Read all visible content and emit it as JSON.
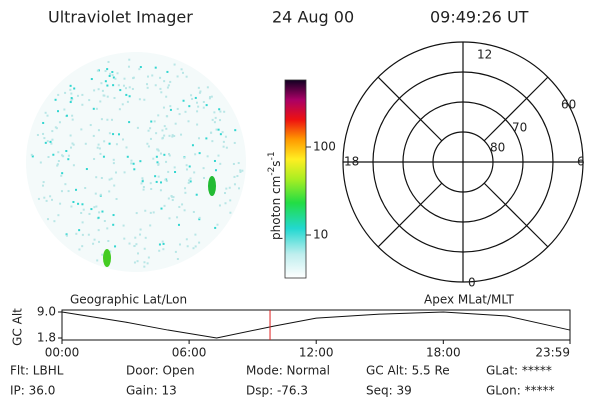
{
  "header": {
    "title": "Ultraviolet Imager",
    "date": "24 Aug 00",
    "time": "09:49:26 UT"
  },
  "colorbar": {
    "unit": "photon cm",
    "exp1": "-2",
    "unit2": "s",
    "exp2": "-1",
    "ticks": [
      "100",
      "10"
    ]
  },
  "polar": {
    "mlt_labels": [
      "12",
      "18",
      "6",
      "0"
    ],
    "lat_labels": [
      "60",
      "70",
      "80"
    ]
  },
  "image_label": "Geographic Lat/Lon",
  "polar_label": "Apex MLat/MLT",
  "altitude": {
    "ylabel": "GC Alt",
    "x": [
      0,
      3,
      5,
      7.3,
      10,
      12,
      15,
      18,
      21,
      23.98
    ],
    "values": [
      9.0,
      6.2,
      4.0,
      1.8,
      5.1,
      7.3,
      8.4,
      9.0,
      7.9,
      4.0
    ],
    "xlim": [
      0,
      23.98
    ],
    "ylim": [
      1.8,
      9.0
    ],
    "xticks": [
      {
        "value": 0,
        "label": "00:00"
      },
      {
        "value": 6,
        "label": "06:00"
      },
      {
        "value": 12,
        "label": "12:00"
      },
      {
        "value": 18,
        "label": "18:00"
      },
      {
        "value": 23.98,
        "label": "23:59"
      }
    ],
    "yticks": [
      {
        "value": 9.0,
        "label": "9.0"
      },
      {
        "value": 1.8,
        "label": "1.8"
      }
    ],
    "marker": 9.82
  },
  "fields": [
    [
      "Flt: LBHL",
      "Door: Open",
      "Mode: Normal",
      "GC Alt: 5.5 Re",
      "GLat: *****"
    ],
    [
      "IP: 36.0",
      "Gain: 13",
      "Dsp:  -76.3",
      "Seq: 39",
      "GLon: *****"
    ]
  ]
}
